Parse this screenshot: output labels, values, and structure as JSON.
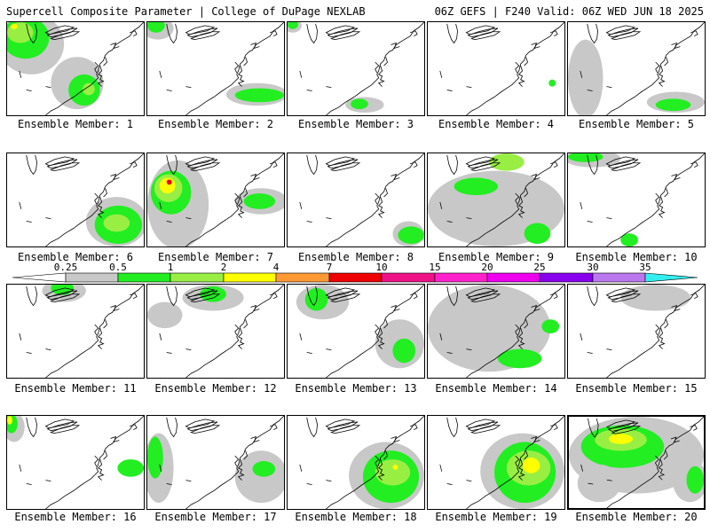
{
  "header": {
    "left": "Supercell Composite Parameter | College of DuPage NEXLAB",
    "right": "06Z GEFS | F240 Valid: 06Z WED JUN 18 2025"
  },
  "colorbar": {
    "labels": [
      "0.25",
      "0.5",
      "1",
      "2",
      "4",
      "7",
      "10",
      "15",
      "20",
      "25",
      "30",
      "35"
    ],
    "colors": [
      "#ffffff",
      "#c8c8c8",
      "#22ee22",
      "#99ee44",
      "#ffff00",
      "#ff9933",
      "#ee0000",
      "#ee1188",
      "#ff22cc",
      "#ee00ee",
      "#8800ee",
      "#bb77ee",
      "#33eeee"
    ]
  },
  "members": [
    {
      "label": "Ensemble Member: 1"
    },
    {
      "label": "Ensemble Member: 2"
    },
    {
      "label": "Ensemble Member: 3"
    },
    {
      "label": "Ensemble Member: 4"
    },
    {
      "label": "Ensemble Member: 5"
    },
    {
      "label": "Ensemble Member: 6"
    },
    {
      "label": "Ensemble Member: 7"
    },
    {
      "label": "Ensemble Member: 8"
    },
    {
      "label": "Ensemble Member: 9"
    },
    {
      "label": "Ensemble Member: 10"
    },
    {
      "label": "Ensemble Member: 11"
    },
    {
      "label": "Ensemble Member: 12"
    },
    {
      "label": "Ensemble Member: 13"
    },
    {
      "label": "Ensemble Member: 14"
    },
    {
      "label": "Ensemble Member: 15"
    },
    {
      "label": "Ensemble Member: 16"
    },
    {
      "label": "Ensemble Member: 17"
    },
    {
      "label": "Ensemble Member: 18"
    },
    {
      "label": "Ensemble Member: 19"
    },
    {
      "label": "Ensemble Member: 20"
    }
  ],
  "selected_member": 20
}
